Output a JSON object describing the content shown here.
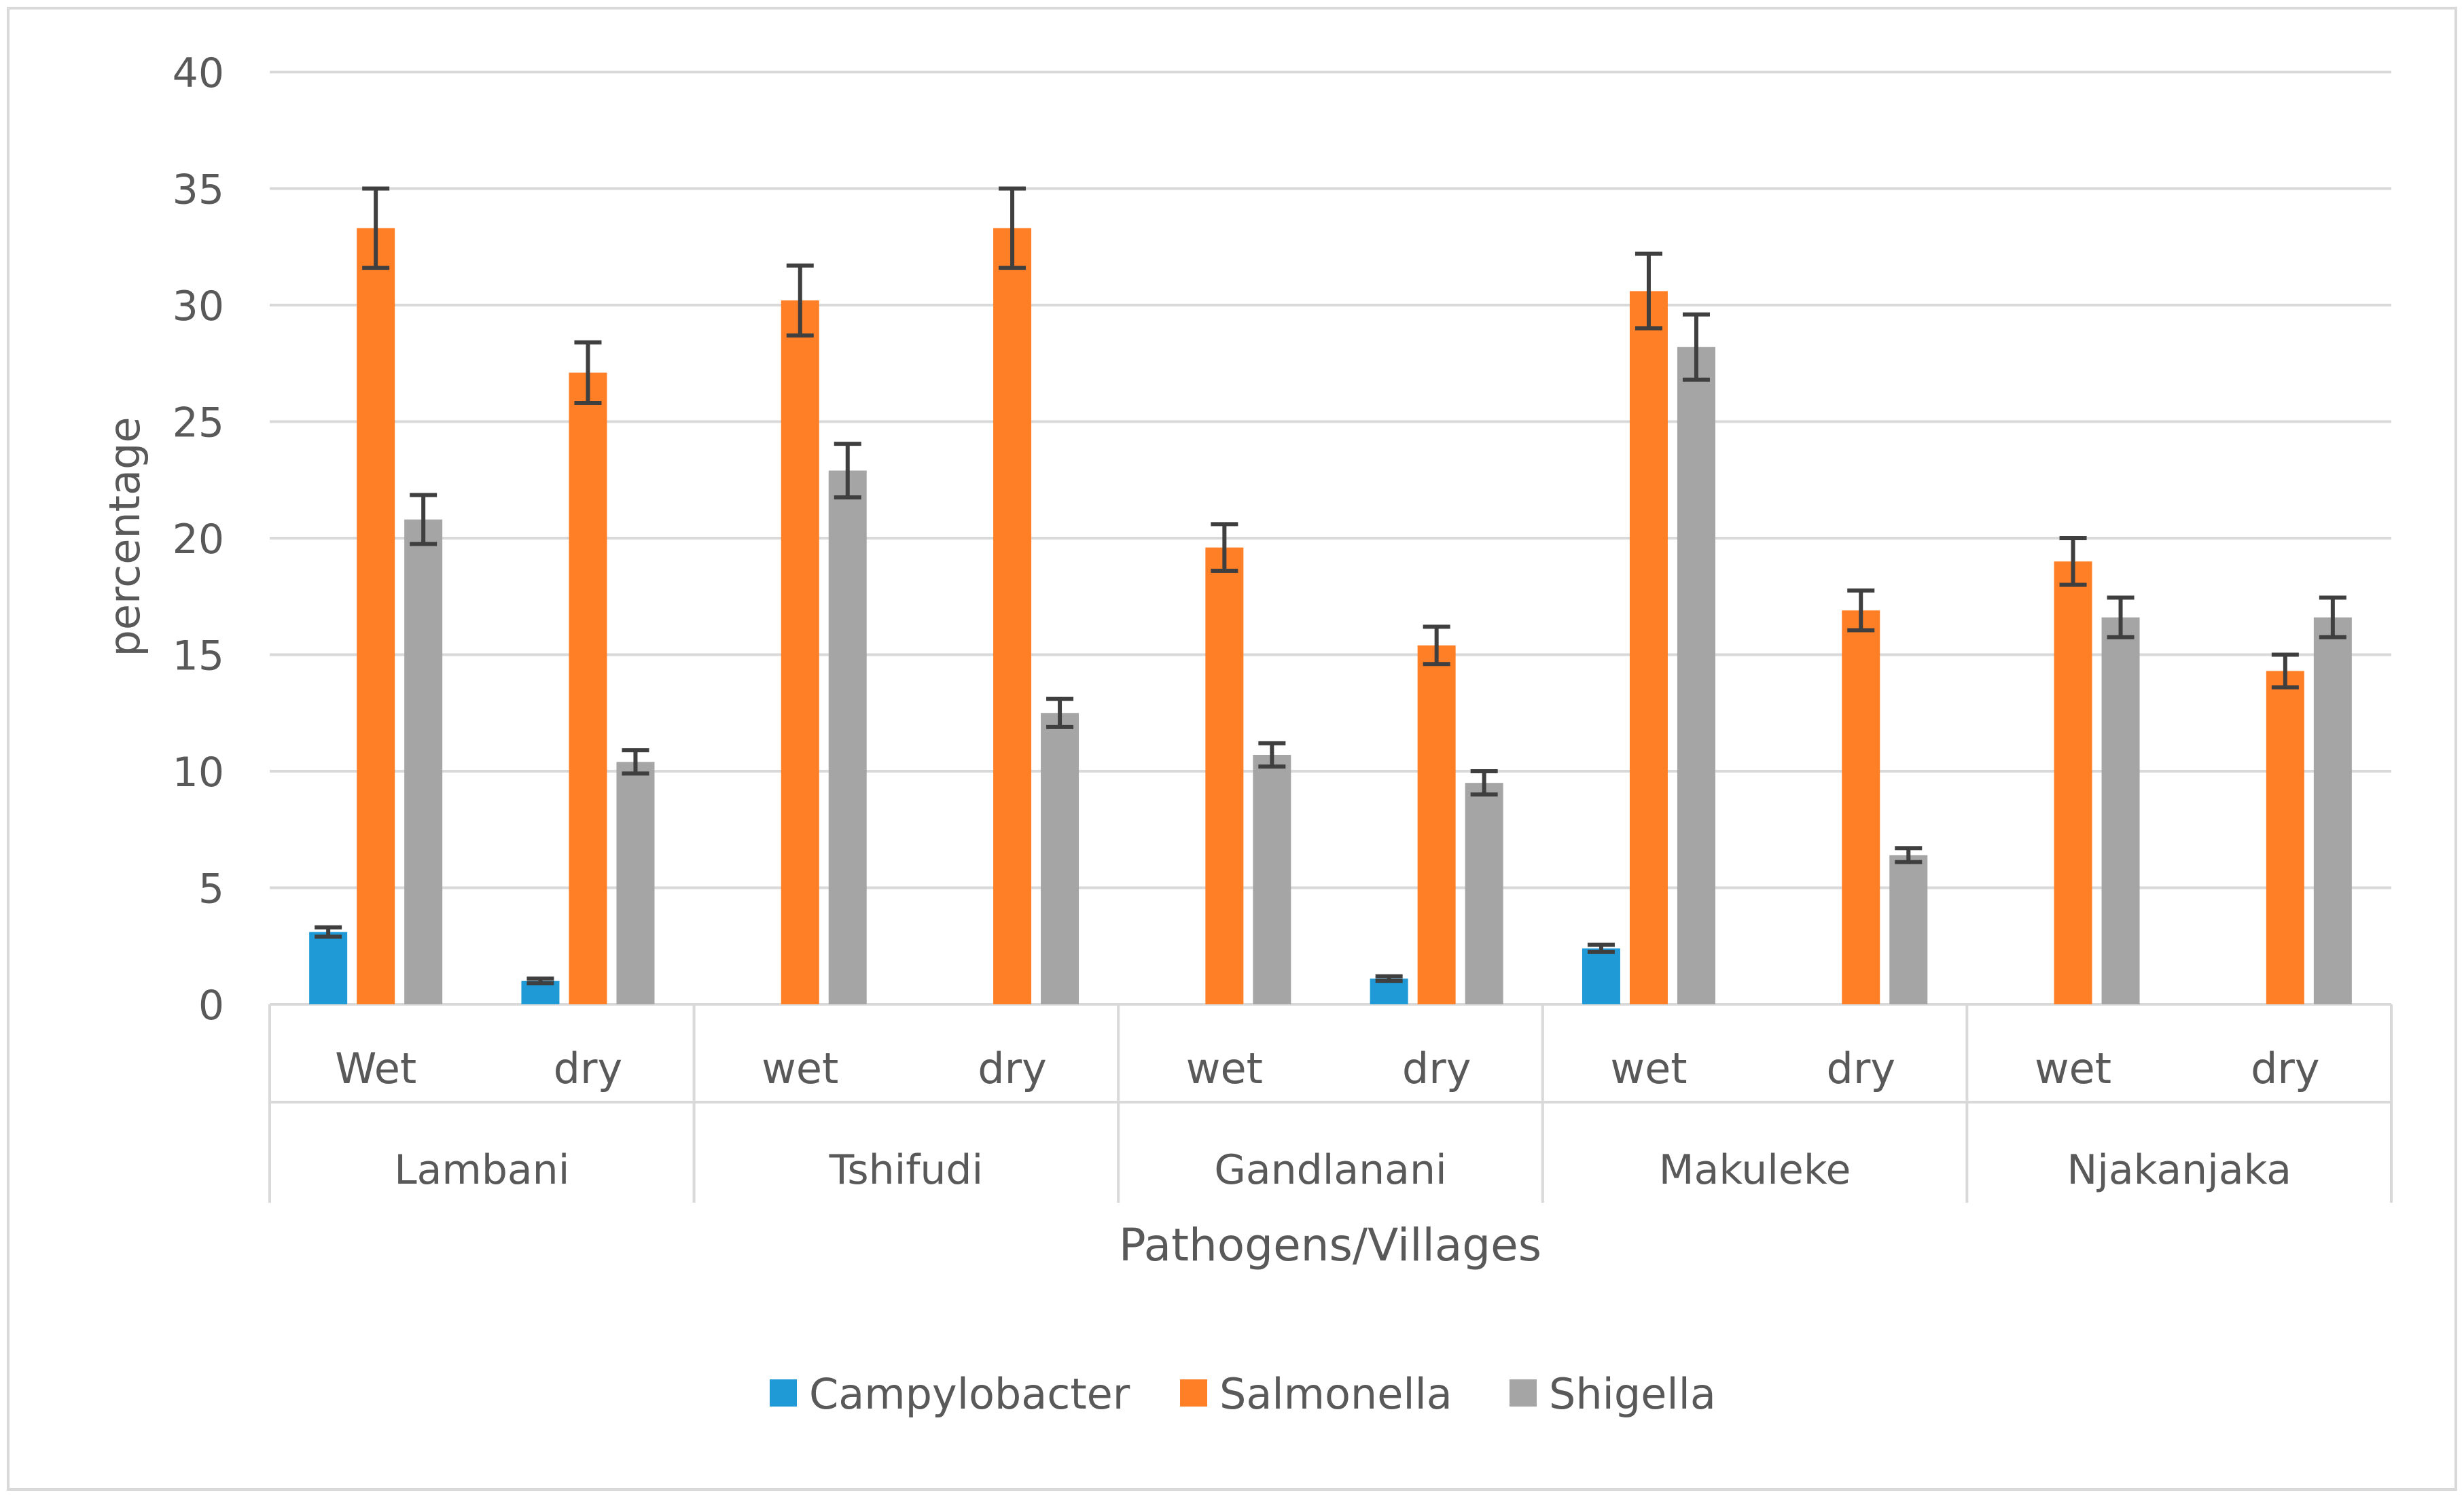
{
  "chart_data": {
    "type": "bar",
    "title": "",
    "xlabel": "Pathogens/Villages",
    "ylabel": "percentage",
    "ylim": [
      0,
      40
    ],
    "yticks": [
      0,
      5,
      10,
      15,
      20,
      25,
      30,
      35,
      40
    ],
    "ytick_labels": [
      "0",
      "5",
      "10",
      "15",
      "20",
      "25",
      "30",
      "35",
      "40"
    ],
    "grid": true,
    "legend_position": "bottom-center",
    "groups": [
      {
        "village": "Lambani",
        "seasons": [
          "Wet",
          "dry"
        ]
      },
      {
        "village": "Tshifudi",
        "seasons": [
          "wet",
          "dry"
        ]
      },
      {
        "village": "Gandlanani",
        "seasons": [
          "wet",
          "dry"
        ]
      },
      {
        "village": "Makuleke",
        "seasons": [
          "wet",
          "dry"
        ]
      },
      {
        "village": "Njakanjaka",
        "seasons": [
          "wet",
          "dry"
        ]
      }
    ],
    "categories": [
      "Lambani Wet",
      "Lambani dry",
      "Tshifudi wet",
      "Tshifudi dry",
      "Gandlanani wet",
      "Gandlanani dry",
      "Makuleke wet",
      "Makuleke dry",
      "Njakanjaka wet",
      "Njakanjaka dry"
    ],
    "series": [
      {
        "name": "Campylobacter",
        "color": "#1f9ad6",
        "values": [
          3.1,
          1.0,
          0,
          0,
          0,
          1.1,
          2.4,
          0,
          0,
          0
        ],
        "errors": [
          0.2,
          0.1,
          0,
          0,
          0,
          0.1,
          0.15,
          0,
          0,
          0
        ]
      },
      {
        "name": "Salmonella",
        "color": "#ff7f27",
        "values": [
          33.3,
          27.1,
          30.2,
          33.3,
          19.6,
          15.4,
          30.6,
          16.9,
          19.0,
          14.3
        ],
        "errors": [
          1.7,
          1.3,
          1.5,
          1.7,
          1.0,
          0.8,
          1.6,
          0.85,
          1.0,
          0.7
        ]
      },
      {
        "name": "Shigella",
        "color": "#a5a5a5",
        "values": [
          20.8,
          10.4,
          22.9,
          12.5,
          10.7,
          9.5,
          28.2,
          6.4,
          16.6,
          16.6
        ],
        "errors": [
          1.05,
          0.5,
          1.15,
          0.6,
          0.5,
          0.5,
          1.4,
          0.3,
          0.85,
          0.85
        ]
      }
    ]
  },
  "colors": {
    "error_bar": "#3f3f3f",
    "grid": "#d9d9d9",
    "text": "#595959",
    "frame": "#d9d9d9"
  }
}
